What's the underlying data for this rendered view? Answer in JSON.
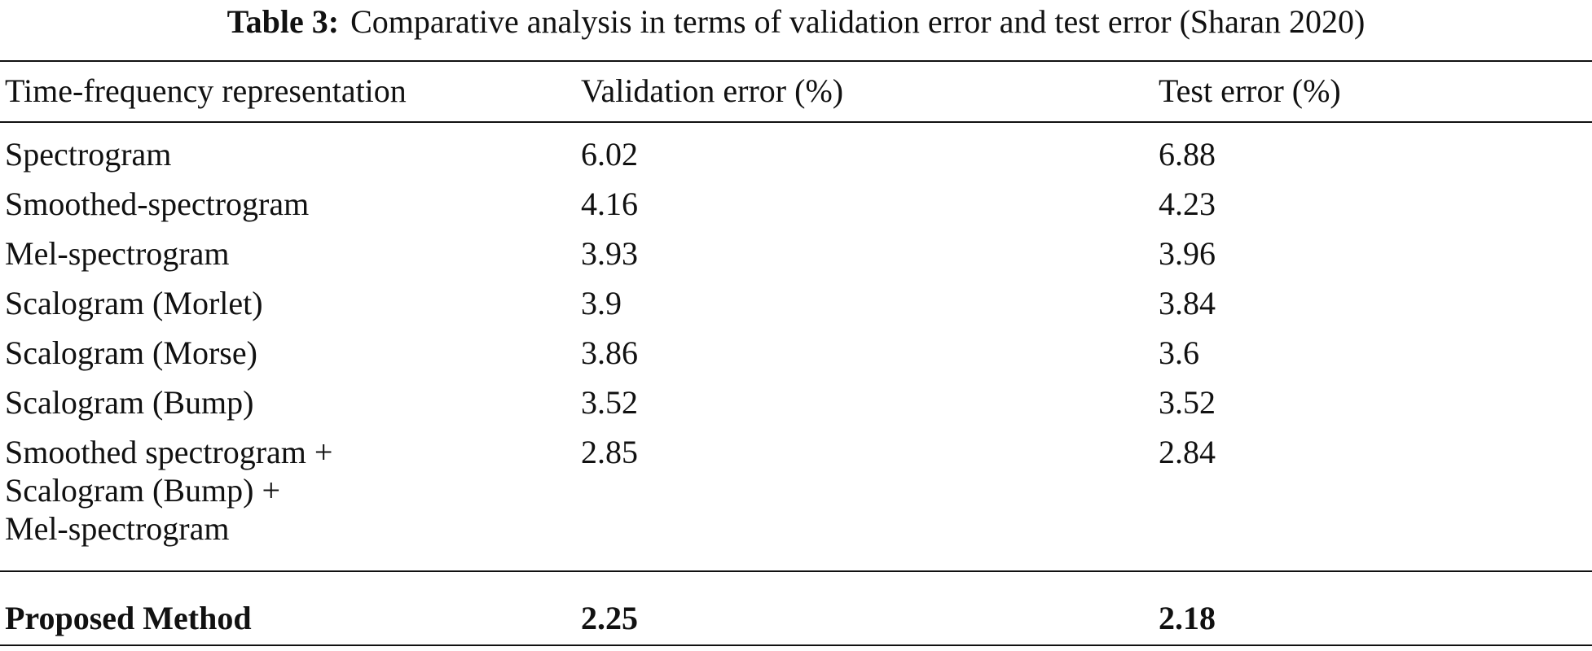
{
  "caption": {
    "label": "Table 3:",
    "text": "Comparative analysis in terms of validation error and test error (Sharan 2020)"
  },
  "table": {
    "header": [
      "Time-frequency representation",
      "Validation error (%)",
      "Test error (%)"
    ],
    "rows": [
      [
        "Spectrogram",
        "6.02",
        "6.88"
      ],
      [
        "Smoothed-spectrogram",
        "4.16",
        "4.23"
      ],
      [
        "Mel-spectrogram",
        "3.93",
        "3.96"
      ],
      [
        "Scalogram (Morlet)",
        "3.9",
        "3.84"
      ],
      [
        "Scalogram (Morse)",
        "3.86",
        "3.6"
      ],
      [
        "Scalogram (Bump)",
        "3.52",
        "3.52"
      ],
      [
        [
          "Smoothed spectrogram +",
          "Scalogram (Bump) +",
          "Mel-spectrogram"
        ],
        "2.85",
        "2.84"
      ]
    ],
    "footer_row": [
      "Proposed Method",
      "2.25",
      "2.18"
    ]
  }
}
